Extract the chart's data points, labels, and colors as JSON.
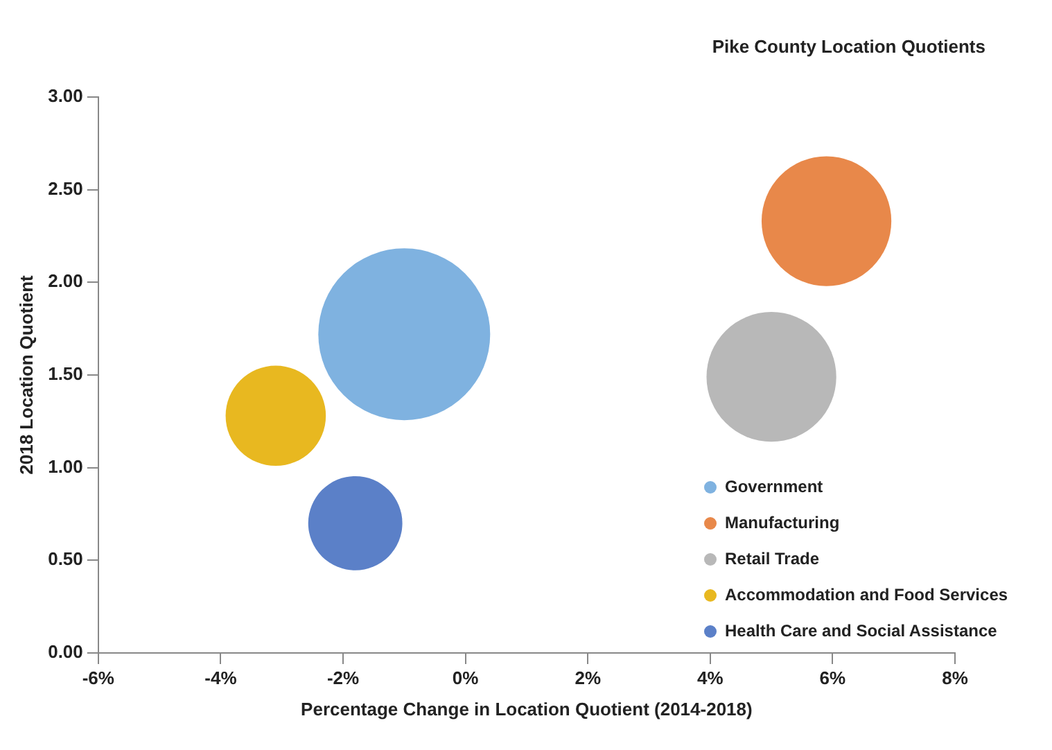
{
  "chart_data": {
    "type": "bubble",
    "title": "Pike County Location Quotients",
    "xlabel": "Percentage Change in Location Quotient (2014-2018)",
    "ylabel": "2018 Location Quotient",
    "series": [
      {
        "name": "Government",
        "color": "#7fb2e0",
        "x": [
          -1.0
        ],
        "values": [
          1.72
        ],
        "sizes": [
          1
        ]
      },
      {
        "name": "Manufacturing",
        "color": "#e8884a",
        "x": [
          5.9
        ],
        "values": [
          2.33
        ],
        "sizes": [
          0.57
        ]
      },
      {
        "name": "Retail Trade",
        "color": "#b8b8b8",
        "x": [
          5.0
        ],
        "values": [
          1.49
        ],
        "sizes": [
          0.57
        ]
      },
      {
        "name": "Accommodation and Food Services",
        "color": "#e8b820",
        "x": [
          -3.1
        ],
        "values": [
          1.28
        ],
        "sizes": [
          0.34
        ]
      },
      {
        "name": "Health Care and Social Assistance",
        "color": "#5b80c8",
        "x": [
          -1.8
        ],
        "values": [
          0.7
        ],
        "sizes": [
          0.3
        ]
      }
    ],
    "xlim": [
      -6,
      8
    ],
    "xticks": [
      {
        "value": -6,
        "label": "-6%"
      },
      {
        "value": -4,
        "label": "-4%"
      },
      {
        "value": -2,
        "label": "-2%"
      },
      {
        "value": 0,
        "label": "0%"
      },
      {
        "value": 2,
        "label": "2%"
      },
      {
        "value": 4,
        "label": "4%"
      },
      {
        "value": 6,
        "label": "6%"
      },
      {
        "value": 8,
        "label": "8%"
      }
    ],
    "ylim": [
      0,
      3
    ],
    "yticks": [
      {
        "value": 0,
        "label": "0.00"
      },
      {
        "value": 0.5,
        "label": "0.50"
      },
      {
        "value": 1,
        "label": "1.00"
      },
      {
        "value": 1.5,
        "label": "1.50"
      },
      {
        "value": 2,
        "label": "2.00"
      },
      {
        "value": 2.5,
        "label": "2.50"
      },
      {
        "value": 3,
        "label": "3.00"
      }
    ],
    "grid": false,
    "legend": "right",
    "marker": "circle"
  }
}
